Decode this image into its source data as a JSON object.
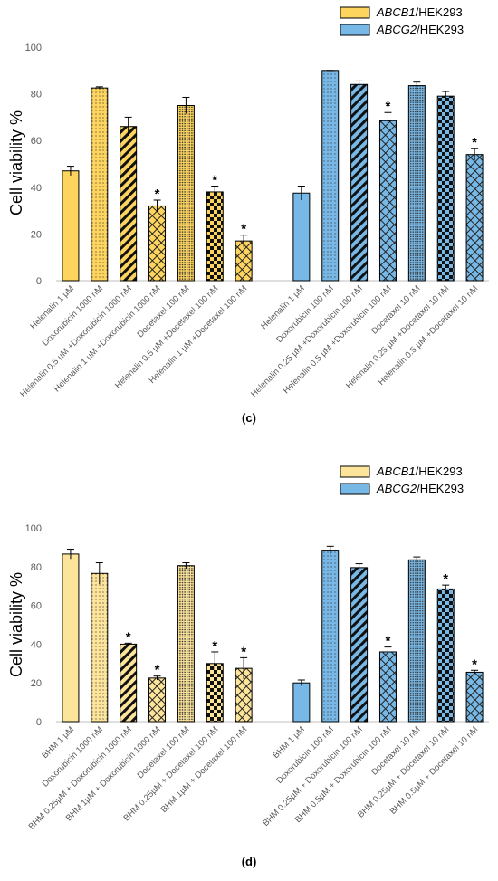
{
  "chart_data": [
    {
      "type": "bar",
      "caption": "(c)",
      "y_label": "Cell viability %",
      "ylim": [
        0,
        100
      ],
      "yticks": [
        0,
        20,
        40,
        60,
        80,
        100
      ],
      "grid": false,
      "legend": "top-right",
      "categories": [
        "Helenalin 1 µM",
        "Doxorubicin 1000 nM",
        "Helenalin 0.5 µM +Doxorubicin 1000 nM",
        "Helenalin 1 µM +Doxorubicin 1000 nM",
        "Docetaxel 100 nM",
        "Helenalin 0.5 µM +Docetaxel 100 nM",
        "Helenalin 1 µM +Docetaxel 100 nM",
        null,
        "Helenalin 1 µM",
        "Doxorubicin 100 nM",
        "Helenalin 0.25 µM +Doxorubicin 100 nM",
        "Helenalin 0.5 µM +Doxorubicin 100 nM",
        "Docetaxel 10 nM",
        "Helenalin 0.25 µM +Docetaxel 10 nM",
        "Helenalin 0.5 µM +Docetaxel 10 nM"
      ],
      "series": [
        {
          "name": "ABCB1/HEK293",
          "color": "#fdd55e",
          "values": [
            47,
            82.5,
            66,
            32,
            75,
            38,
            17,
            null,
            null,
            null,
            null,
            null,
            null,
            null,
            null
          ],
          "errors": [
            2,
            0.5,
            4,
            2.5,
            3.5,
            2.5,
            2.5,
            null,
            null,
            null,
            null,
            null,
            null,
            null,
            null
          ],
          "annotations": [
            null,
            null,
            null,
            "*",
            null,
            "*",
            "*",
            null,
            null,
            null,
            null,
            null,
            null,
            null,
            null
          ],
          "patterns": [
            "solid",
            "dots",
            "stripes",
            "lattice",
            "dense",
            "checker",
            "lattice",
            null,
            null,
            null,
            null,
            null,
            null,
            null,
            null
          ]
        },
        {
          "name": "ABCG2/HEK293",
          "color": "#78b8e6",
          "values": [
            null,
            null,
            null,
            null,
            null,
            null,
            null,
            null,
            37.5,
            90,
            84,
            68.5,
            83.5,
            79,
            54
          ],
          "errors": [
            null,
            null,
            null,
            null,
            null,
            null,
            null,
            null,
            3,
            0,
            1.5,
            3.5,
            1.5,
            2,
            2.5
          ],
          "annotations": [
            null,
            null,
            null,
            null,
            null,
            null,
            null,
            null,
            null,
            null,
            null,
            "*",
            null,
            null,
            "*"
          ],
          "patterns": [
            null,
            null,
            null,
            null,
            null,
            null,
            null,
            null,
            "solid",
            "dots",
            "stripes",
            "lattice",
            "dense",
            "checker",
            "lattice"
          ]
        }
      ]
    },
    {
      "type": "bar",
      "caption": "(d)",
      "y_label": "Cell viability %",
      "ylim": [
        0,
        100
      ],
      "yticks": [
        0,
        20,
        40,
        60,
        80,
        100
      ],
      "grid": false,
      "legend": "top-right",
      "categories": [
        "BHM 1 µM",
        "Doxorubicin 1000 nM",
        "BHM 0.25µM + Doxorubicin 1000 nM",
        "BHM 1µM + Doxorubicin 1000 nM",
        "Docetaxel 100 nM",
        "BHM 0.25µM + Docetaxel 100 nM",
        "BHM 1µM + Docetaxel 100 nM",
        null,
        "BHM 1 µM",
        "Doxorubicin 100 nM",
        "BHM 0.25µM + Doxorubicin 100 nM",
        "BHM 0.5µM + Doxorubicin 100 nM",
        "Docetaxel 10 nM",
        "BHM 0.25µM + Docetaxel 10 nM",
        "BHM 0.5µM + Docetaxel 10 nM"
      ],
      "series": [
        {
          "name": "ABCB1/HEK293",
          "color": "#fde49b",
          "values": [
            86.5,
            76.5,
            40,
            22.5,
            80.5,
            30,
            27.5,
            null,
            null,
            null,
            null,
            null,
            null,
            null,
            null
          ],
          "errors": [
            2.5,
            5.5,
            0.5,
            1,
            1.5,
            6,
            5.5,
            null,
            null,
            null,
            null,
            null,
            null,
            null,
            null
          ],
          "annotations": [
            null,
            null,
            "*",
            "*",
            null,
            "*",
            "*",
            null,
            null,
            null,
            null,
            null,
            null,
            null,
            null
          ],
          "patterns": [
            "solid",
            "dots",
            "stripes",
            "lattice",
            "dense",
            "checker",
            "lattice",
            null,
            null,
            null,
            null,
            null,
            null,
            null,
            null
          ]
        },
        {
          "name": "ABCG2/HEK293",
          "color": "#78b8e6",
          "values": [
            null,
            null,
            null,
            null,
            null,
            null,
            null,
            null,
            20,
            88.5,
            79.5,
            36,
            83.5,
            68.5,
            25.5
          ],
          "errors": [
            null,
            null,
            null,
            null,
            null,
            null,
            null,
            null,
            1.5,
            2,
            2,
            2.5,
            1.5,
            2,
            1
          ],
          "annotations": [
            null,
            null,
            null,
            null,
            null,
            null,
            null,
            null,
            null,
            null,
            null,
            "*",
            null,
            "*",
            "*"
          ],
          "patterns": [
            null,
            null,
            null,
            null,
            null,
            null,
            null,
            null,
            "solid",
            "dots",
            "stripes",
            "lattice",
            "dense",
            "checker",
            "lattice"
          ]
        }
      ]
    }
  ]
}
